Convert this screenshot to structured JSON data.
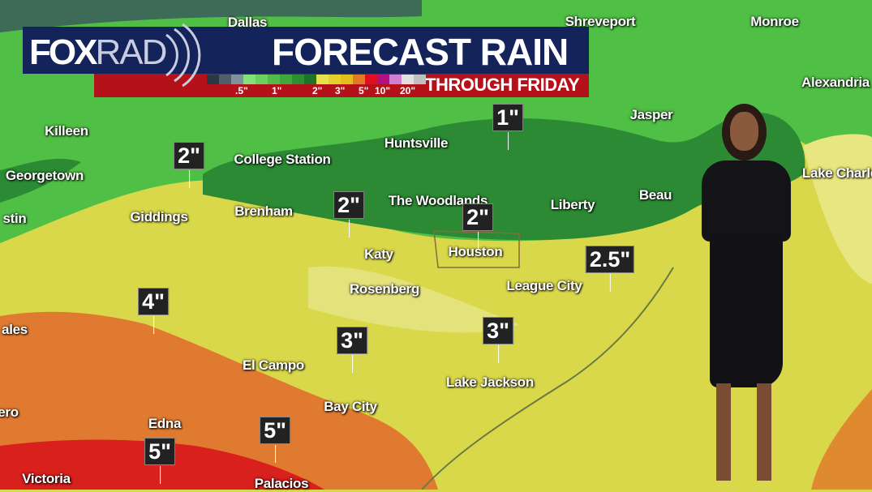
{
  "header": {
    "logo": "FOX",
    "logo_suffix": "RAD",
    "title": "FORECAST RAIN",
    "subtitle": "THROUGH FRIDAY"
  },
  "legend": {
    "colors": [
      "#2a3a44",
      "#4e5f6a",
      "#7e929e",
      "#86e07a",
      "#6bd060",
      "#52bb4a",
      "#3ea83a",
      "#2c8f30",
      "#1d7426",
      "#e8e04a",
      "#e4d02c",
      "#e2bd1c",
      "#e07a24",
      "#e01020",
      "#b01080",
      "#d080d0",
      "#e0e0e0",
      "#c0c0c0"
    ],
    "ticks": [
      ".5\"",
      "1\"",
      "2\"",
      "3\"",
      "5\"",
      "10\"",
      "20\""
    ]
  },
  "cities": [
    "Dallas",
    "Shreveport",
    "Monroe",
    "Alexandria",
    "Killeen",
    "Jasper",
    "Huntsville",
    "College Station",
    "Georgetown",
    "Lake Charles",
    "stin",
    "Giddings",
    "Brenham",
    "The Woodlands",
    "Liberty",
    "Beau",
    "Katy",
    "Houston",
    "Rosenberg",
    "League City",
    "ales",
    "El Campo",
    "Lake Jackson",
    "Bay City",
    "ero",
    "Edna",
    "Victoria",
    "Palacios"
  ],
  "rain_amounts": [
    "1\"",
    "2\"",
    "2\"",
    "2\"",
    "2.5\"",
    "4\"",
    "3\"",
    "3\"",
    "5\"",
    "5\""
  ],
  "zone_colors": {
    "light_green": "#4fbf45",
    "dark_green": "#2b8a33",
    "yellow": "#dcd84a",
    "pale_yellow": "#e8e680",
    "orange": "#e07a30",
    "red": "#d8201c"
  }
}
